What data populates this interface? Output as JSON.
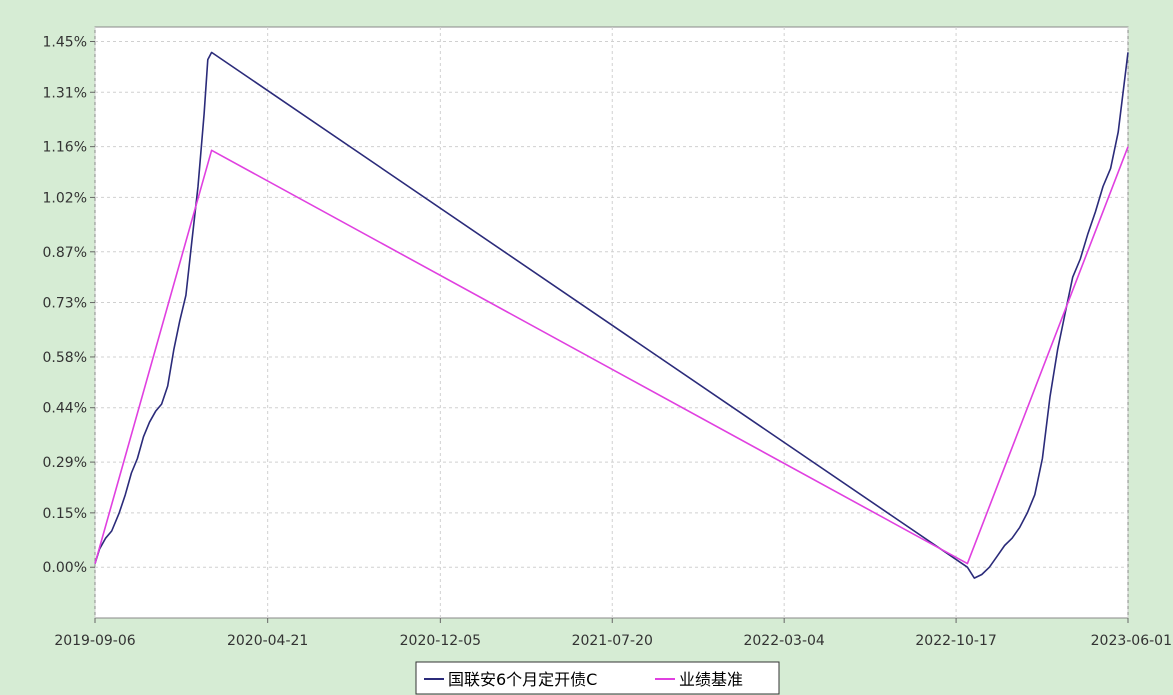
{
  "chart_data": {
    "type": "line",
    "title": "",
    "xlabel": "",
    "ylabel": "",
    "x_ticks": [
      "2019-09-06",
      "2020-04-21",
      "2020-12-05",
      "2021-07-20",
      "2022-03-04",
      "2022-10-17",
      "2023-06-01"
    ],
    "y_ticks": [
      "0.00%",
      "0.15%",
      "0.29%",
      "0.44%",
      "0.58%",
      "0.73%",
      "0.87%",
      "1.02%",
      "1.16%",
      "1.31%",
      "1.45%"
    ],
    "xlim": [
      "2019-09-06",
      "2023-06-01"
    ],
    "ylim": [
      -0.14,
      1.49
    ],
    "grid": true,
    "legend_position": "bottom-center",
    "series": [
      {
        "name": "国联安6个月定开债C",
        "color": "#2b2b7a",
        "points": [
          [
            "2019-09-06",
            0.01
          ],
          [
            "2019-09-12",
            0.05
          ],
          [
            "2019-09-20",
            0.08
          ],
          [
            "2019-09-28",
            0.1
          ],
          [
            "2019-10-08",
            0.15
          ],
          [
            "2019-10-16",
            0.2
          ],
          [
            "2019-10-24",
            0.26
          ],
          [
            "2019-11-01",
            0.3
          ],
          [
            "2019-11-09",
            0.36
          ],
          [
            "2019-11-17",
            0.4
          ],
          [
            "2019-11-25",
            0.43
          ],
          [
            "2019-12-03",
            0.45
          ],
          [
            "2019-12-11",
            0.5
          ],
          [
            "2019-12-19",
            0.6
          ],
          [
            "2019-12-27",
            0.68
          ],
          [
            "2020-01-04",
            0.75
          ],
          [
            "2020-01-12",
            0.9
          ],
          [
            "2020-01-20",
            1.05
          ],
          [
            "2020-01-28",
            1.25
          ],
          [
            "2020-02-02",
            1.4
          ],
          [
            "2020-02-07",
            1.42
          ],
          [
            "2022-11-01",
            0.0
          ],
          [
            "2022-11-10",
            -0.03
          ],
          [
            "2022-11-20",
            -0.02
          ],
          [
            "2022-11-30",
            0.0
          ],
          [
            "2022-12-10",
            0.03
          ],
          [
            "2022-12-20",
            0.06
          ],
          [
            "2022-12-30",
            0.08
          ],
          [
            "2023-01-09",
            0.11
          ],
          [
            "2023-01-19",
            0.15
          ],
          [
            "2023-01-29",
            0.2
          ],
          [
            "2023-02-08",
            0.3
          ],
          [
            "2023-02-18",
            0.47
          ],
          [
            "2023-02-28",
            0.6
          ],
          [
            "2023-03-10",
            0.7
          ],
          [
            "2023-03-20",
            0.8
          ],
          [
            "2023-03-30",
            0.85
          ],
          [
            "2023-04-09",
            0.92
          ],
          [
            "2023-04-19",
            0.98
          ],
          [
            "2023-04-29",
            1.05
          ],
          [
            "2023-05-09",
            1.1
          ],
          [
            "2023-05-19",
            1.2
          ],
          [
            "2023-06-01",
            1.42
          ]
        ]
      },
      {
        "name": "业绩基准",
        "color": "#e040e0",
        "points": [
          [
            "2019-09-06",
            0.01
          ],
          [
            "2020-02-07",
            1.15
          ],
          [
            "2022-11-01",
            0.01
          ],
          [
            "2023-06-01",
            1.16
          ]
        ]
      }
    ]
  }
}
